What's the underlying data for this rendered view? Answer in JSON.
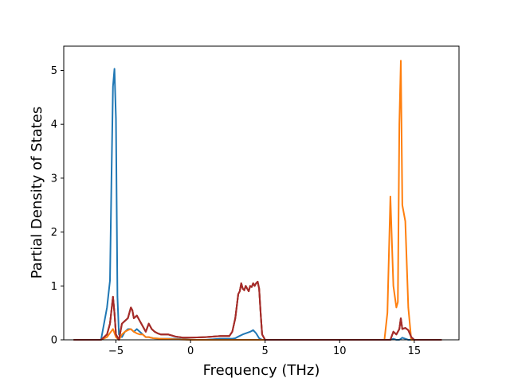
{
  "chart_data": {
    "type": "line",
    "title": "",
    "xlabel": "Frequency (THz)",
    "ylabel": "Partial Density of States",
    "xlim": [
      -8.5,
      18.0
    ],
    "ylim": [
      0,
      5.45
    ],
    "xticks": [
      -5,
      0,
      5,
      10,
      15
    ],
    "xtick_labels": [
      "−5",
      "0",
      "5",
      "10",
      "15"
    ],
    "yticks": [
      0,
      1,
      2,
      3,
      4,
      5
    ],
    "ytick_labels": [
      "0",
      "1",
      "2",
      "3",
      "4",
      "5"
    ],
    "grid": false,
    "legend": "none",
    "series": [
      {
        "color": "#1f77b4",
        "x": [
          -7.8,
          -6.0,
          -5.8,
          -5.6,
          -5.4,
          -5.3,
          -5.2,
          -5.1,
          -5.0,
          -4.9,
          -4.8,
          -4.6,
          -4.4,
          -4.2,
          -4.0,
          -3.8,
          -3.6,
          -3.4,
          -3.2,
          -3.0,
          -2.8,
          -2.5,
          -2.0,
          -1.5,
          -1.0,
          0.0,
          1.0,
          2.0,
          2.8,
          3.0,
          3.2,
          3.5,
          3.8,
          4.0,
          4.2,
          4.4,
          4.6,
          4.8,
          5.0,
          6.0,
          10.0,
          12.0,
          13.0,
          13.4,
          13.6,
          13.8,
          14.0,
          14.2,
          14.4,
          14.6,
          14.8,
          15.0,
          16.8
        ],
        "y": [
          0.0,
          0.0,
          0.3,
          0.6,
          1.1,
          3.0,
          4.7,
          5.03,
          4.1,
          0.8,
          0.1,
          0.05,
          0.15,
          0.2,
          0.2,
          0.15,
          0.2,
          0.15,
          0.1,
          0.05,
          0.05,
          0.03,
          0.02,
          0.02,
          0.02,
          0.0,
          0.0,
          0.02,
          0.02,
          0.03,
          0.06,
          0.1,
          0.13,
          0.15,
          0.18,
          0.12,
          0.03,
          0.0,
          0.0,
          0.0,
          0.0,
          0.0,
          0.0,
          0.0,
          0.02,
          0.0,
          0.0,
          0.04,
          0.02,
          0.0,
          0.0,
          0.0,
          0.0
        ]
      },
      {
        "color": "#ff7f0e",
        "x": [
          -7.8,
          -6.0,
          -5.6,
          -5.2,
          -5.0,
          -4.8,
          -4.6,
          -4.4,
          -4.2,
          -4.0,
          -3.8,
          -3.6,
          -3.4,
          -3.2,
          -3.0,
          -2.8,
          -2.5,
          -2.0,
          -1.0,
          0.0,
          2.0,
          4.0,
          5.0,
          6.0,
          10.0,
          12.0,
          13.0,
          13.2,
          13.4,
          13.6,
          13.8,
          13.9,
          14.0,
          14.1,
          14.2,
          14.4,
          14.6,
          14.8,
          15.0,
          16.8
        ],
        "y": [
          0.0,
          0.0,
          0.05,
          0.2,
          0.05,
          0.0,
          0.1,
          0.15,
          0.18,
          0.2,
          0.15,
          0.12,
          0.1,
          0.1,
          0.05,
          0.05,
          0.03,
          0.02,
          0.01,
          0.0,
          0.0,
          0.0,
          0.0,
          0.0,
          0.0,
          0.0,
          0.0,
          0.5,
          2.66,
          1.0,
          0.6,
          0.7,
          4.0,
          5.18,
          2.5,
          2.2,
          0.6,
          0.0,
          0.0,
          0.0
        ]
      },
      {
        "color": "#2ca02c",
        "x": [
          -7.8,
          -6.0,
          -5.6,
          -5.4,
          -5.2,
          -5.1,
          -5.0,
          -4.8,
          -4.6,
          -4.4,
          -4.2,
          -4.0,
          -3.9,
          -3.8,
          -3.6,
          -3.4,
          -3.2,
          -3.0,
          -2.8,
          -2.6,
          -2.4,
          -2.2,
          -2.0,
          -1.8,
          -1.5,
          -1.0,
          -0.5,
          0.0,
          1.0,
          2.0,
          2.6,
          2.8,
          3.0,
          3.2,
          3.3,
          3.4,
          3.5,
          3.6,
          3.7,
          3.8,
          3.9,
          4.0,
          4.1,
          4.2,
          4.3,
          4.4,
          4.5,
          4.6,
          4.7,
          4.8,
          5.0,
          6.0,
          10.0,
          12.0,
          13.0,
          13.4,
          13.6,
          13.8,
          14.0,
          14.1,
          14.2,
          14.4,
          14.6,
          14.8,
          15.0,
          16.8
        ],
        "y": [
          0.0,
          0.0,
          0.1,
          0.3,
          0.8,
          0.5,
          0.1,
          0.0,
          0.3,
          0.35,
          0.4,
          0.6,
          0.55,
          0.4,
          0.45,
          0.35,
          0.25,
          0.15,
          0.3,
          0.2,
          0.15,
          0.12,
          0.1,
          0.1,
          0.1,
          0.06,
          0.04,
          0.04,
          0.05,
          0.07,
          0.07,
          0.15,
          0.4,
          0.85,
          0.9,
          1.05,
          0.95,
          0.92,
          1.0,
          0.95,
          0.9,
          1.0,
          0.98,
          1.05,
          1.0,
          1.05,
          1.08,
          0.95,
          0.5,
          0.1,
          0.0,
          0.0,
          0.0,
          0.0,
          0.0,
          0.0,
          0.15,
          0.1,
          0.2,
          0.4,
          0.2,
          0.22,
          0.18,
          0.05,
          0.0,
          0.0
        ]
      },
      {
        "color": "#d62728",
        "x": [
          -7.8,
          -6.0,
          -5.6,
          -5.4,
          -5.2,
          -5.1,
          -5.0,
          -4.8,
          -4.6,
          -4.4,
          -4.2,
          -4.0,
          -3.9,
          -3.8,
          -3.6,
          -3.4,
          -3.2,
          -3.0,
          -2.8,
          -2.6,
          -2.4,
          -2.2,
          -2.0,
          -1.8,
          -1.5,
          -1.0,
          -0.5,
          0.0,
          1.0,
          2.0,
          2.6,
          2.8,
          3.0,
          3.2,
          3.3,
          3.4,
          3.5,
          3.6,
          3.7,
          3.8,
          3.9,
          4.0,
          4.1,
          4.2,
          4.3,
          4.4,
          4.5,
          4.6,
          4.7,
          4.8,
          5.0,
          6.0,
          10.0,
          12.0,
          13.0,
          13.4,
          13.6,
          13.8,
          14.0,
          14.1,
          14.2,
          14.4,
          14.6,
          14.8,
          15.0,
          16.8
        ],
        "y": [
          0.0,
          0.0,
          0.1,
          0.3,
          0.8,
          0.5,
          0.1,
          0.0,
          0.3,
          0.35,
          0.4,
          0.6,
          0.55,
          0.4,
          0.45,
          0.35,
          0.25,
          0.15,
          0.3,
          0.2,
          0.15,
          0.12,
          0.1,
          0.1,
          0.1,
          0.06,
          0.04,
          0.04,
          0.05,
          0.07,
          0.07,
          0.15,
          0.4,
          0.85,
          0.9,
          1.05,
          0.95,
          0.92,
          1.0,
          0.95,
          0.9,
          1.0,
          0.98,
          1.05,
          1.0,
          1.05,
          1.08,
          0.95,
          0.5,
          0.1,
          0.0,
          0.0,
          0.0,
          0.0,
          0.0,
          0.0,
          0.15,
          0.1,
          0.2,
          0.4,
          0.2,
          0.22,
          0.18,
          0.05,
          0.0,
          0.0
        ]
      },
      {
        "color": "#a52a2a",
        "x": [
          -7.8,
          -6.0,
          -5.6,
          -5.4,
          -5.2,
          -5.1,
          -5.0,
          -4.8,
          -4.6,
          -4.4,
          -4.2,
          -4.0,
          -3.9,
          -3.8,
          -3.6,
          -3.4,
          -3.2,
          -3.0,
          -2.8,
          -2.6,
          -2.4,
          -2.2,
          -2.0,
          -1.8,
          -1.5,
          -1.0,
          -0.5,
          0.0,
          1.0,
          2.0,
          2.6,
          2.8,
          3.0,
          3.2,
          3.3,
          3.4,
          3.5,
          3.6,
          3.7,
          3.8,
          3.9,
          4.0,
          4.1,
          4.2,
          4.3,
          4.4,
          4.5,
          4.6,
          4.7,
          4.8,
          5.0,
          6.0,
          10.0,
          12.0,
          13.0,
          13.4,
          13.6,
          13.8,
          14.0,
          14.1,
          14.2,
          14.4,
          14.6,
          14.8,
          15.0,
          16.8
        ],
        "y": [
          0.0,
          0.0,
          0.1,
          0.3,
          0.8,
          0.5,
          0.1,
          0.0,
          0.3,
          0.35,
          0.4,
          0.6,
          0.55,
          0.4,
          0.45,
          0.35,
          0.25,
          0.15,
          0.3,
          0.2,
          0.15,
          0.12,
          0.1,
          0.1,
          0.1,
          0.06,
          0.04,
          0.04,
          0.05,
          0.07,
          0.07,
          0.15,
          0.4,
          0.85,
          0.9,
          1.05,
          0.95,
          0.92,
          1.0,
          0.95,
          0.9,
          1.0,
          0.98,
          1.05,
          1.0,
          1.05,
          1.08,
          0.95,
          0.5,
          0.1,
          0.0,
          0.0,
          0.0,
          0.0,
          0.0,
          0.0,
          0.15,
          0.1,
          0.2,
          0.4,
          0.2,
          0.22,
          0.18,
          0.05,
          0.0,
          0.0
        ]
      }
    ]
  }
}
